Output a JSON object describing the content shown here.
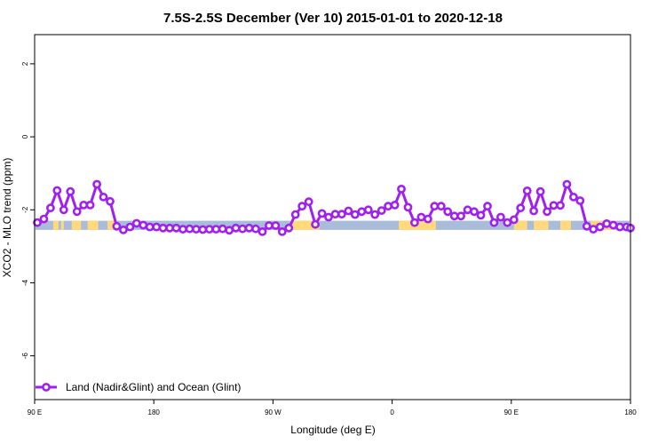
{
  "chart_data": {
    "type": "line",
    "title": "7.5S-2.5S December (Ver 10)   2015-01-01 to 2020-12-18",
    "xlabel": "Longitude (deg E)",
    "ylabel": "XCO2 - MLO trend (ppm)",
    "x_ticks": [
      {
        "value": 90,
        "label": "90 E"
      },
      {
        "value": 180,
        "label": "180"
      },
      {
        "value": 270,
        "label": "90 W"
      },
      {
        "value": 360,
        "label": "0"
      },
      {
        "value": 450,
        "label": "90 E"
      },
      {
        "value": 540,
        "label": "180"
      }
    ],
    "y_ticks": [
      {
        "value": 2,
        "label": "2"
      },
      {
        "value": 0,
        "label": "0"
      },
      {
        "value": -2,
        "label": "-2"
      },
      {
        "value": -4,
        "label": "-4"
      },
      {
        "value": -6,
        "label": "-6"
      }
    ],
    "xlim": [
      90,
      540
    ],
    "ylim": [
      -7.2,
      2.8
    ],
    "grid": false,
    "legend_position": "bottom-left",
    "series": [
      {
        "name": "Land (Nadir&Glint) and Ocean (Glint)",
        "color": "#a020f0",
        "x": [
          92,
          97,
          102,
          107,
          112,
          117,
          122,
          127,
          132,
          137,
          142,
          147,
          152,
          157,
          162,
          167,
          172,
          177,
          182,
          187,
          192,
          197,
          202,
          207,
          212,
          217,
          222,
          227,
          232,
          237,
          242,
          247,
          252,
          257,
          262,
          267,
          272,
          277,
          282,
          287,
          292,
          297,
          302,
          307,
          312,
          317,
          322,
          327,
          332,
          337,
          342,
          347,
          352,
          357,
          362,
          367,
          372,
          377,
          382,
          387,
          392,
          397,
          402,
          407,
          412,
          417,
          422,
          427,
          432,
          437,
          442,
          447,
          452,
          457,
          462,
          467,
          472,
          477,
          482,
          487,
          492,
          497,
          502,
          507,
          512,
          517,
          522,
          527,
          532,
          537,
          540
        ],
        "y": [
          -2.35,
          -2.25,
          -1.95,
          -1.47,
          -2.0,
          -1.5,
          -2.05,
          -1.87,
          -1.87,
          -1.3,
          -1.65,
          -1.77,
          -2.45,
          -2.55,
          -2.47,
          -2.37,
          -2.42,
          -2.47,
          -2.47,
          -2.5,
          -2.5,
          -2.5,
          -2.53,
          -2.52,
          -2.53,
          -2.54,
          -2.53,
          -2.53,
          -2.52,
          -2.56,
          -2.5,
          -2.52,
          -2.5,
          -2.52,
          -2.6,
          -2.43,
          -2.43,
          -2.6,
          -2.5,
          -2.13,
          -1.9,
          -1.78,
          -2.4,
          -2.1,
          -2.2,
          -2.12,
          -2.12,
          -2.03,
          -2.13,
          -2.05,
          -2.0,
          -2.13,
          -2.02,
          -1.9,
          -1.87,
          -1.43,
          -1.93,
          -2.35,
          -2.2,
          -2.25,
          -1.9,
          -1.9,
          -2.05,
          -2.17,
          -2.17,
          -2.0,
          -2.05,
          -2.15,
          -1.9,
          -2.35,
          -2.2,
          -2.35,
          -2.27,
          -1.95,
          -1.48,
          -2.03,
          -1.5,
          -2.05,
          -1.88,
          -1.88,
          -1.3,
          -1.65,
          -1.75,
          -2.45,
          -2.53,
          -2.47,
          -2.38,
          -2.42,
          -2.47,
          -2.47,
          -2.5
        ]
      }
    ],
    "surface_band": {
      "y": [
        -2.55,
        -2.3
      ],
      "land_color": "#ffd97a",
      "ocean_color": "#a9bddb",
      "land_segments": [
        [
          104,
          108
        ],
        [
          110,
          112
        ],
        [
          118,
          125
        ],
        [
          130,
          138
        ],
        [
          145,
          152
        ],
        [
          283,
          305
        ],
        [
          365,
          393
        ],
        [
          452,
          462
        ],
        [
          467,
          478
        ],
        [
          487,
          495
        ],
        [
          510,
          527
        ]
      ]
    }
  }
}
